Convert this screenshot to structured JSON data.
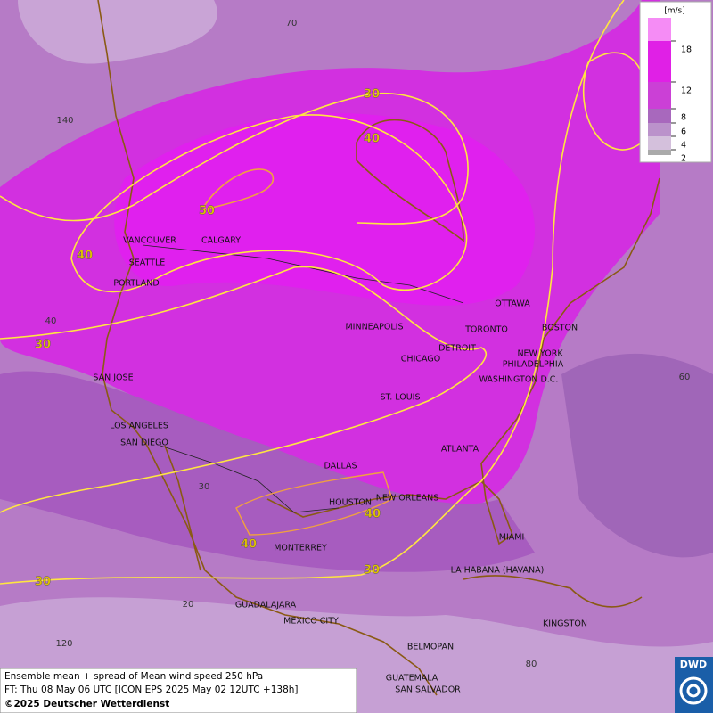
{
  "legend": {
    "unit": "[m/s]",
    "levels": [
      18,
      12,
      8,
      6,
      4,
      2
    ]
  },
  "cities": [
    "VANCOUVER",
    "CALGARY",
    "SEATTLE",
    "PORTLAND",
    "MINNEAPOLIS",
    "OTTAWA",
    "TORONTO",
    "BOSTON",
    "DETROIT",
    "CHICAGO",
    "NEW YORK",
    "PHILADELPHIA",
    "WASHINGTON D.C.",
    "SAN JOSE",
    "ST. LOUIS",
    "LOS ANGELES",
    "SAN DIEGO",
    "ATLANTA",
    "DALLAS",
    "NEW ORLEANS",
    "HOUSTON",
    "MIAMI",
    "MONTERREY",
    "LA HABANA (HAVANA)",
    "GUADALAJARA",
    "MEXICO CITY",
    "KINGSTON",
    "BELMOPAN",
    "GUATEMALA",
    "SAN SALVADOR"
  ],
  "contour_labels": [
    30,
    40,
    50,
    40,
    30,
    40,
    40,
    30,
    30
  ],
  "grid_labels": [
    70,
    140,
    40,
    30,
    60,
    20,
    120,
    80
  ],
  "caption": {
    "line1": "Ensemble mean + spread of Mean wind speed 250 hPa",
    "line2": "FT: Thu 08 May 06 UTC [ICON EPS 2025 May 02 12UTC +138h]",
    "line3": "©2025 Deutscher Wetterdienst"
  },
  "logo": "DWD"
}
